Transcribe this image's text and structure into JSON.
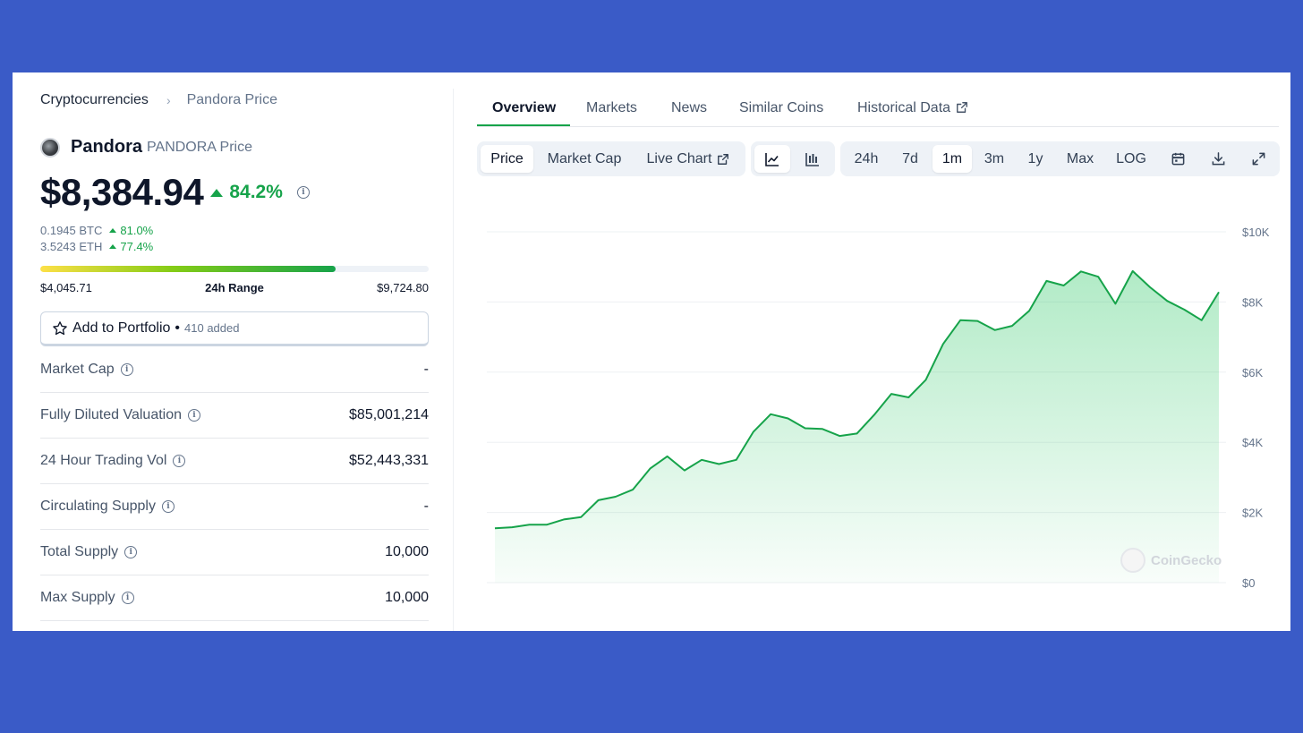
{
  "breadcrumb": {
    "parent": "Cryptocurrencies",
    "separator": "›",
    "current": "Pandora Price"
  },
  "coin": {
    "name": "Pandora",
    "symbol_label": "PANDORA Price",
    "price": "$8,384.94",
    "change_24h": "84.2%",
    "btc_price": "0.1945 BTC",
    "btc_change": "81.0%",
    "eth_price": "3.5243 ETH",
    "eth_change": "77.4%"
  },
  "range": {
    "low": "$4,045.71",
    "label": "24h Range",
    "high": "$9,724.80",
    "fill_percent": 76
  },
  "portfolio": {
    "label": "Add to Portfolio",
    "separator": "•",
    "added": "410 added",
    "icon": "star-outline-icon"
  },
  "stats": [
    {
      "label": "Market Cap",
      "value": "-"
    },
    {
      "label": "Fully Diluted Valuation",
      "value": "$85,001,214"
    },
    {
      "label": "24 Hour Trading Vol",
      "value": "$52,443,331"
    },
    {
      "label": "Circulating Supply",
      "value": "-"
    },
    {
      "label": "Total Supply",
      "value": "10,000"
    },
    {
      "label": "Max Supply",
      "value": "10,000"
    }
  ],
  "tabs": [
    {
      "label": "Overview",
      "active": true
    },
    {
      "label": "Markets"
    },
    {
      "label": "News"
    },
    {
      "label": "Similar Coins"
    },
    {
      "label": "Historical Data"
    }
  ],
  "toolbar": {
    "chart_modes": [
      "Price",
      "Market Cap",
      "Live Chart"
    ],
    "chart_types": [
      "line-chart-icon",
      "candlestick-icon"
    ],
    "ranges": [
      "24h",
      "7d",
      "1m",
      "3m",
      "1y",
      "Max",
      "LOG"
    ],
    "active_range": "1m",
    "actions": [
      "calendar-icon",
      "download-icon",
      "expand-icon"
    ]
  },
  "watermark": "CoinGecko",
  "colors": {
    "accent": "#16a34a",
    "background": "#3a5bc7"
  },
  "chart_data": {
    "type": "area",
    "y_ticks": [
      "$0",
      "$2K",
      "$4K",
      "$6K",
      "$8K",
      "$10K"
    ],
    "ylim": [
      0,
      10000
    ],
    "values": [
      1550,
      1580,
      1650,
      1650,
      1800,
      1870,
      2350,
      2450,
      2650,
      3250,
      3600,
      3200,
      3500,
      3380,
      3500,
      4300,
      4800,
      4680,
      4400,
      4380,
      4180,
      4250,
      4780,
      5380,
      5280,
      5780,
      6800,
      7480,
      7460,
      7200,
      7320,
      7750,
      8600,
      8470,
      8870,
      8720,
      7950,
      8880,
      8420,
      8030,
      7780,
      7480,
      8280
    ],
    "grid": true
  }
}
